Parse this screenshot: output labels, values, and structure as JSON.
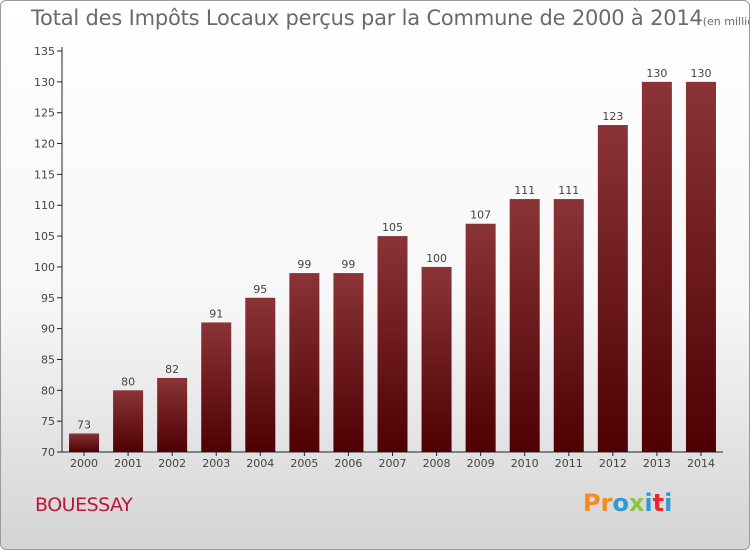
{
  "header": {
    "title": "Total des Impôts Locaux perçus par la Commune de 2000 à 2014",
    "unit": "(en milliers d'€)"
  },
  "footer": {
    "commune": "BOUESSAY",
    "logo": "Proxiti"
  },
  "colors": {
    "bar_top": "#8a3438",
    "bar_bottom": "#4e0002",
    "commune": "#c0143c",
    "logo_letters": [
      "#f28c1e",
      "#f28c1e",
      "#2f9ad8",
      "#8cc63f",
      "#2f9ad8",
      "#e8262b",
      "#2f9ad8"
    ]
  },
  "chart_data": {
    "type": "bar",
    "title": "Total des Impôts Locaux perçus par la Commune de 2000 à 2014",
    "subtitle": "(en milliers d'€)",
    "xlabel": "",
    "ylabel": "",
    "categories": [
      "2000",
      "2001",
      "2002",
      "2003",
      "2004",
      "2005",
      "2006",
      "2007",
      "2008",
      "2009",
      "2010",
      "2011",
      "2012",
      "2013",
      "2014"
    ],
    "values": [
      73,
      80,
      82,
      91,
      95,
      99,
      99,
      105,
      100,
      107,
      111,
      111,
      123,
      130,
      130
    ],
    "ylim": [
      70,
      135
    ],
    "yticks": [
      70,
      75,
      80,
      85,
      90,
      95,
      100,
      105,
      110,
      115,
      120,
      125,
      130,
      135
    ],
    "grid": false,
    "legend": "none"
  }
}
